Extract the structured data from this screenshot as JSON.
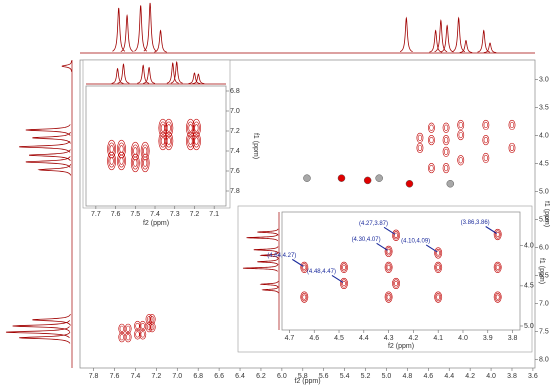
{
  "chart_data": [
    {
      "type": "nmr2d",
      "xlabel": "f2 (ppm)",
      "ylabel": "f1 (ppm)",
      "xlim": [
        7.93,
        3.58
      ],
      "ylim": [
        2.65,
        8.15
      ],
      "xticks": [
        7.8,
        7.6,
        7.4,
        7.2,
        {
          "value": 7,
          "label": "7.0"
        },
        6.8,
        6.6,
        6.4,
        6.2,
        {
          "value": 6,
          "label": "6.0"
        },
        5.8,
        5.6,
        5.4,
        5.2,
        {
          "value": 5,
          "label": "5.0"
        },
        4.8,
        4.6,
        4.4,
        4.2,
        {
          "value": 4,
          "label": "4.0"
        },
        3.8,
        3.6
      ],
      "yticks": [
        {
          "value": 3,
          "label": "3.0"
        },
        3.5,
        {
          "value": 4,
          "label": "4.0"
        },
        4.5,
        {
          "value": 5,
          "label": "5.0"
        },
        5.5,
        {
          "value": 6,
          "label": "6.0"
        },
        6.5,
        {
          "value": 7,
          "label": "7.0"
        },
        7.5,
        {
          "value": 8,
          "label": "8.0"
        }
      ],
      "color": "#c00000",
      "projection_top": {
        "ppm": [
          7.56,
          7.48,
          7.35,
          7.26,
          7.16,
          4.81,
          4.53,
          4.48,
          4.42,
          4.31,
          4.24,
          4.07,
          4.01
        ],
        "intensity": [
          0.9,
          0.75,
          0.95,
          1.0,
          0.45,
          0.7,
          0.45,
          0.65,
          0.55,
          0.7,
          0.25,
          0.45,
          0.2
        ]
      },
      "projection_left": {
        "ppm": [
          2.76,
          3.9,
          4.04,
          4.2,
          4.35,
          4.47,
          4.61,
          7.29,
          7.4,
          7.51,
          7.61
        ],
        "intensity": [
          0.15,
          0.7,
          0.6,
          0.8,
          0.65,
          0.7,
          0.5,
          0.6,
          0.9,
          1.0,
          0.8
        ]
      },
      "peaks": {
        "x": [
          7.53,
          7.53,
          7.47,
          7.47,
          7.38,
          7.38,
          7.33,
          7.33,
          7.27,
          7.27,
          7.24,
          7.24,
          4.68,
          4.68,
          4.57,
          4.57,
          4.57,
          4.43,
          4.43,
          4.43,
          4.43,
          4.29,
          4.29,
          4.29,
          4.05,
          4.05,
          4.05,
          3.8,
          3.8
        ],
        "y": [
          7.45,
          7.6,
          7.45,
          7.6,
          7.4,
          7.55,
          7.4,
          7.55,
          7.28,
          7.42,
          7.28,
          7.42,
          4.04,
          4.22,
          3.86,
          4.08,
          4.58,
          3.86,
          4.08,
          4.29,
          4.58,
          3.81,
          3.99,
          4.44,
          3.81,
          4.08,
          4.4,
          3.81,
          4.22
        ]
      },
      "markers": {
        "x": [
          5.76,
          5.43,
          5.18,
          5.07,
          4.78,
          4.39
        ],
        "y": [
          4.76,
          4.76,
          4.8,
          4.76,
          4.86,
          4.86
        ],
        "colors": [
          "#a8a8a8",
          "#e00000",
          "#e00000",
          "#a8a8a8",
          "#e00000",
          "#a8a8a8"
        ]
      }
    },
    {
      "type": "nmr2d",
      "xlabel": "f2 (ppm)",
      "ylabel": "f1 (ppm)",
      "xlim": [
        7.75,
        7.04
      ],
      "ylim": [
        6.75,
        7.95
      ],
      "xticks": [
        7.7,
        7.6,
        7.5,
        7.4,
        7.3,
        7.2,
        7.1
      ],
      "yticks": [
        6.8,
        {
          "value": 7,
          "label": "7.0"
        },
        7.2,
        7.4,
        7.6,
        7.8
      ],
      "color": "#c00000",
      "projection_top": {
        "ppm": [
          7.59,
          7.56,
          7.46,
          7.43,
          7.31,
          7.29,
          7.2,
          7.18
        ],
        "intensity": [
          0.7,
          0.9,
          0.85,
          0.75,
          0.95,
          1.0,
          0.5,
          0.45
        ]
      },
      "peaks": {
        "x": [
          7.62,
          7.62,
          7.57,
          7.57,
          7.5,
          7.5,
          7.45,
          7.45,
          7.36,
          7.36,
          7.33,
          7.33,
          7.22,
          7.22,
          7.19,
          7.19
        ],
        "y": [
          7.38,
          7.5,
          7.38,
          7.5,
          7.4,
          7.52,
          7.4,
          7.52,
          7.17,
          7.3,
          7.17,
          7.3,
          7.17,
          7.3,
          7.17,
          7.3
        ]
      }
    },
    {
      "type": "nmr2d",
      "xlabel": "f2 (ppm)",
      "ylabel": "f1 (ppm)",
      "xlim": [
        4.73,
        3.77
      ],
      "ylim": [
        3.58,
        5.05
      ],
      "xticks": [
        4.7,
        4.6,
        4.5,
        4.4,
        4.3,
        4.2,
        4.1,
        {
          "value": 4,
          "label": "4.0"
        },
        3.9,
        3.8
      ],
      "yticks": [
        {
          "value": 4,
          "label": "4.0"
        },
        4.5,
        {
          "value": 5,
          "label": "5.0"
        }
      ],
      "color": "#c00000",
      "projection_left": {
        "ppm": [
          3.83,
          3.9,
          4.05,
          4.12,
          4.2,
          4.28,
          4.48,
          4.55
        ],
        "intensity": [
          0.6,
          0.9,
          0.7,
          0.5,
          0.6,
          1.0,
          0.5,
          0.45
        ]
      },
      "peaks": {
        "x": [
          4.64,
          4.48,
          4.27,
          4.3,
          4.1,
          3.86,
          4.64,
          4.48,
          4.3,
          4.1,
          4.27,
          4.1,
          3.86,
          3.86,
          4.3
        ],
        "y": [
          4.27,
          4.47,
          3.87,
          4.07,
          4.09,
          3.86,
          4.64,
          4.27,
          4.27,
          4.27,
          4.47,
          4.64,
          4.27,
          4.64,
          4.64
        ]
      },
      "annotations": [
        {
          "text": "(4.27,3.87)",
          "x": 4.27,
          "y": 3.87
        },
        {
          "text": "(4.30,4.07)",
          "x": 4.3,
          "y": 4.07
        },
        {
          "text": "(4.10,4.09)",
          "x": 4.1,
          "y": 4.09
        },
        {
          "text": "(3.86,3.86)",
          "x": 3.86,
          "y": 3.86
        },
        {
          "text": "(4.64,4.27)",
          "x": 4.64,
          "y": 4.27
        },
        {
          "text": "(4.48,4.47)",
          "x": 4.48,
          "y": 4.47
        }
      ]
    }
  ]
}
